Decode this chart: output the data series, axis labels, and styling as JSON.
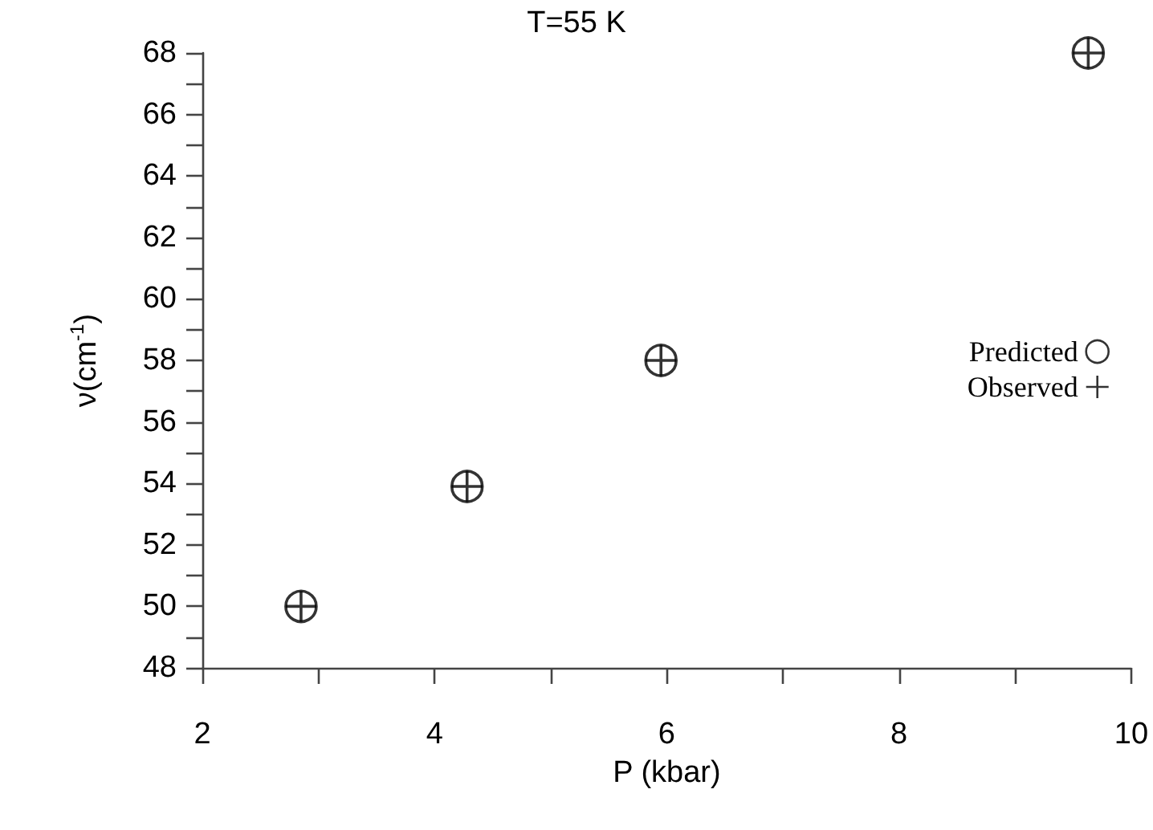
{
  "chart_data": {
    "type": "scatter",
    "title": "T=55 K",
    "xlabel": "P (kbar)",
    "ylabel": "ν(cm$^{-1}$)",
    "x": [
      2.85,
      4.28,
      5.95,
      9.63
    ],
    "series": [
      {
        "name": "Predicted",
        "color": "#000000",
        "marker": "circle",
        "values": [
          50,
          53.9,
          58,
          68
        ]
      },
      {
        "name": "Observed",
        "color": "#000000",
        "marker": "cross",
        "values": [
          50,
          53.9,
          58,
          68
        ]
      }
    ],
    "xlim": [
      2,
      10
    ],
    "ylim": [
      48,
      68
    ],
    "xticks": [
      2,
      {
        "value": 3,
        "label": null
      },
      4,
      {
        "value": 5,
        "label": null
      },
      6,
      {
        "value": 7,
        "label": null
      },
      8,
      {
        "value": 9,
        "label": null
      },
      10
    ],
    "yticks": [
      48,
      {
        "value": 49,
        "label": null
      },
      50,
      {
        "value": 51,
        "label": null
      },
      52,
      {
        "value": 53,
        "label": null
      },
      54,
      {
        "value": 55,
        "label": null
      },
      56,
      {
        "value": 57,
        "label": null
      },
      58,
      {
        "value": 59,
        "label": null
      },
      60,
      {
        "value": 61,
        "label": null
      },
      62,
      {
        "value": 63,
        "label": null
      },
      64,
      {
        "value": 65,
        "label": null
      },
      66,
      {
        "value": 67,
        "label": null
      },
      68
    ],
    "grid": false,
    "legend": "right"
  }
}
